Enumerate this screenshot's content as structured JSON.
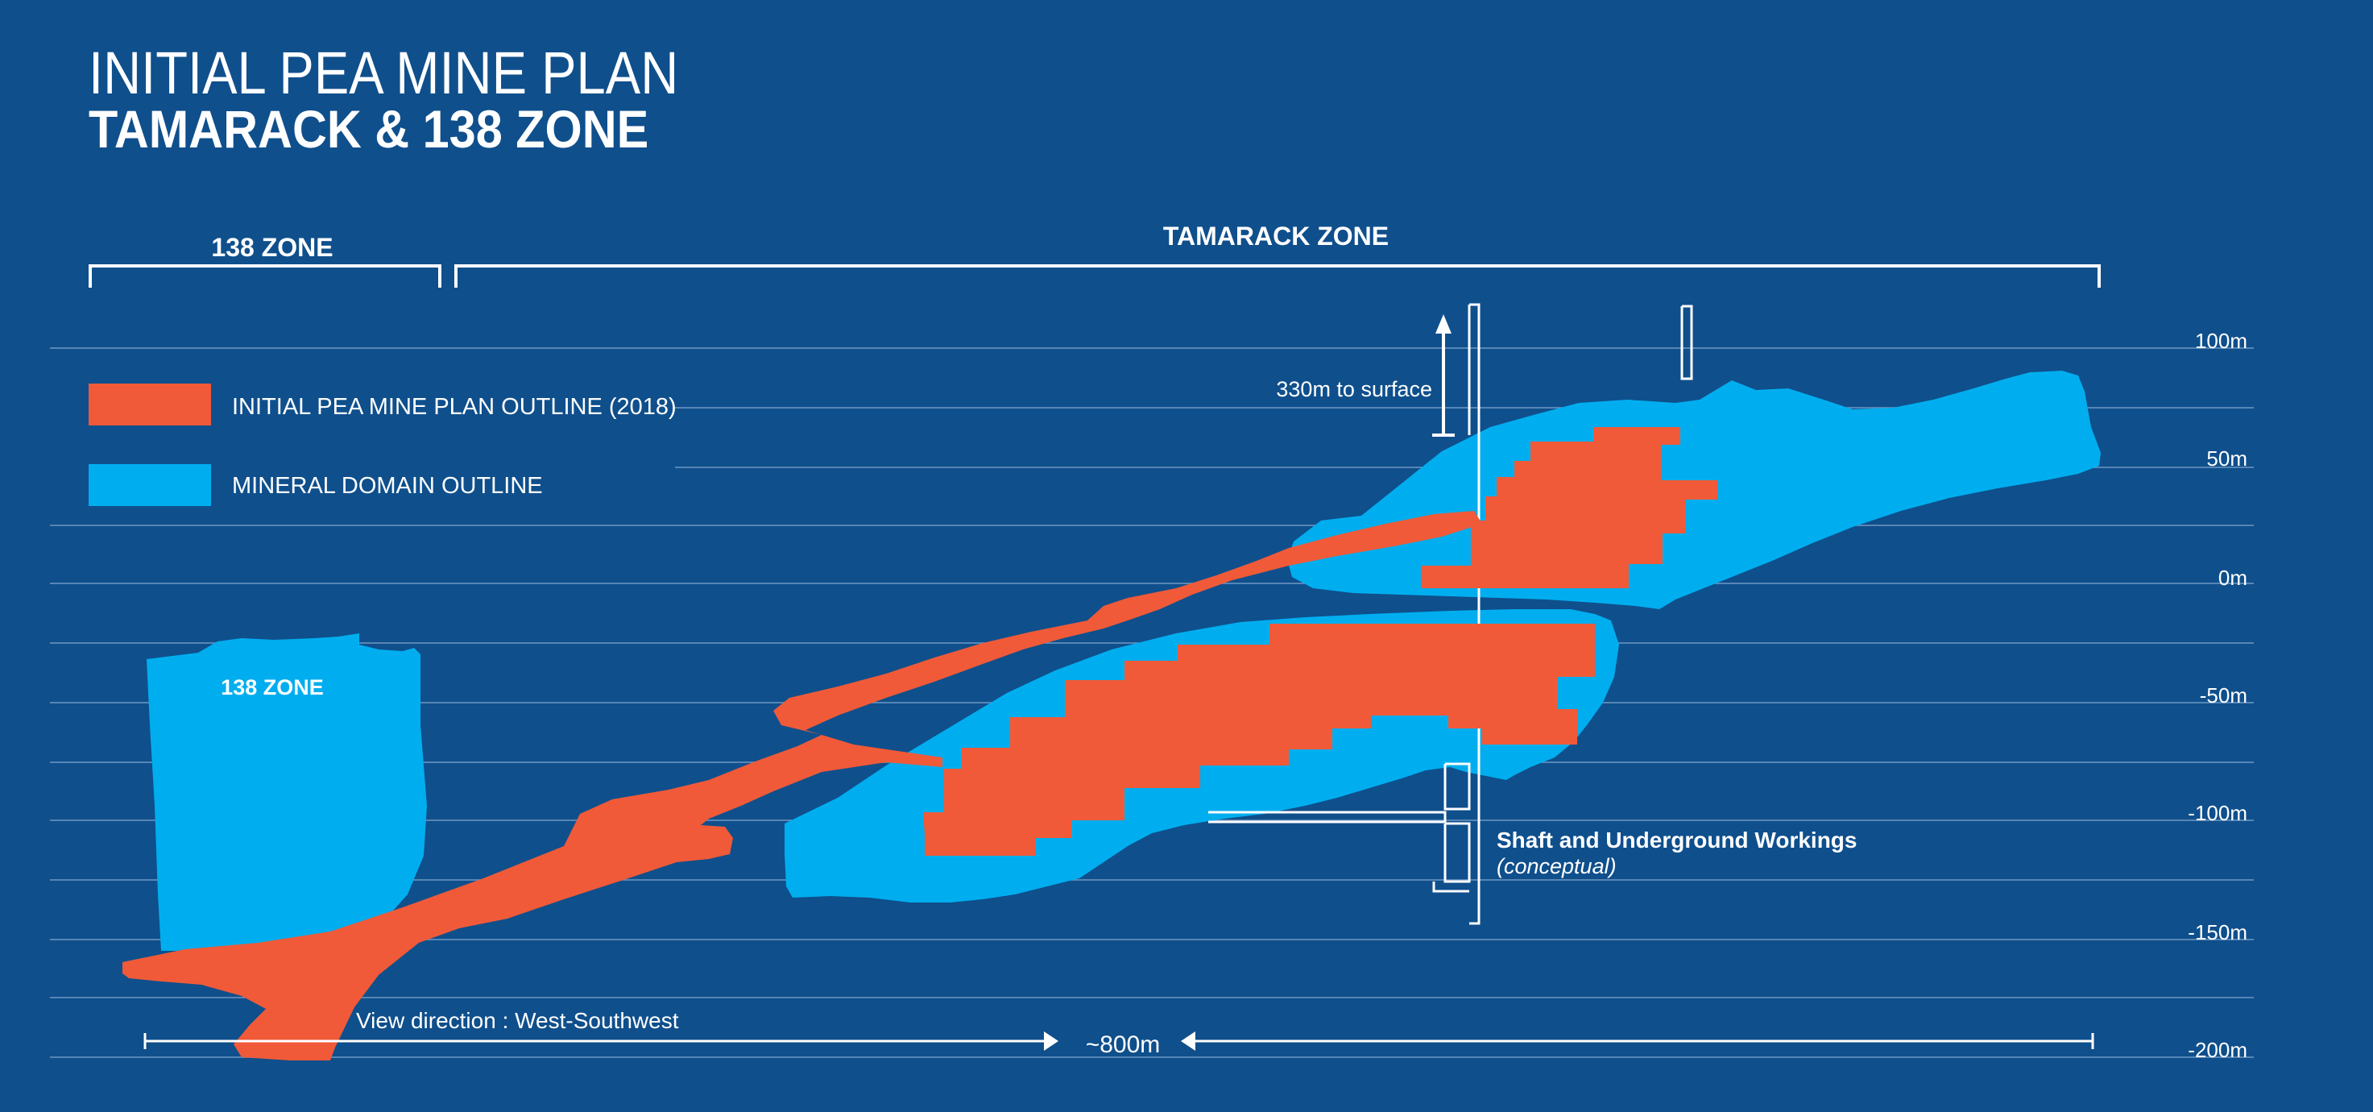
{
  "title": {
    "line1": "INITIAL PEA MINE PLAN",
    "line2": "TAMARACK & 138 ZONE"
  },
  "zones": {
    "zone_138_header": "138 ZONE",
    "tamarack_header": "TAMARACK ZONE",
    "zone_138_body_label": "138 ZONE"
  },
  "legend": {
    "items": [
      {
        "label": "INITIAL PEA MINE PLAN OUTLINE (2018)",
        "color": "#f05a38"
      },
      {
        "label": "MINERAL DOMAIN OUTLINE",
        "color": "#00aeef"
      }
    ]
  },
  "elevations": [
    "100m",
    "50m",
    "0m",
    "-50m",
    "-100m",
    "-150m",
    "-200m"
  ],
  "annotations": {
    "surface": "330m to surface",
    "shaft_title": "Shaft and Underground Workings",
    "shaft_subtitle": "(conceptual)",
    "view_direction": "View direction : West-Southwest",
    "scale": "~800m"
  },
  "colors": {
    "background": "#0f4f8c",
    "mine_plan": "#f05a38",
    "mineral_domain": "#00aeef",
    "grid": "#8fb2d6"
  }
}
